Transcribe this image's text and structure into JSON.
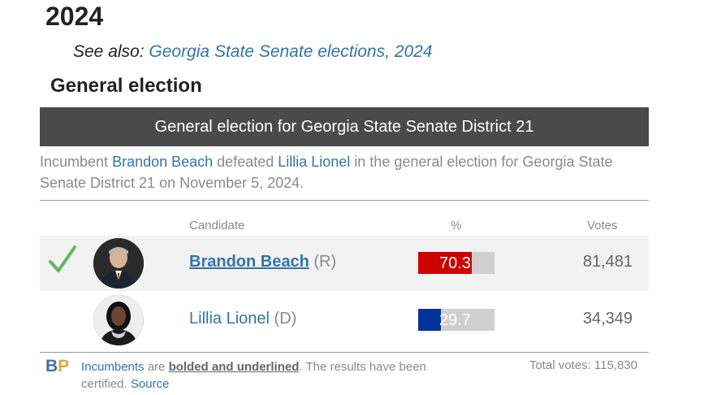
{
  "page": {
    "year_heading": "2024",
    "see_also_prefix": "See also:",
    "see_also_link": "Georgia State Senate elections, 2024",
    "section_title": "General election"
  },
  "election": {
    "header": "General election for Georgia State Senate District 21",
    "summary": {
      "part1": "Incumbent ",
      "winner_link": "Brandon Beach",
      "part2": " defeated ",
      "loser_link": "Lillia Lionel",
      "part3": " in the general election for Georgia State Senate District 21 on November 5, 2024."
    },
    "columns": {
      "candidate": "Candidate",
      "percent": "%",
      "votes": "Votes"
    },
    "candidates": [
      {
        "name": "Brandon Beach",
        "party": "(R)",
        "percent": 70.3,
        "percent_text": "70.3",
        "votes": "81,481",
        "winner": true,
        "incumbent": true,
        "bar_color": "#cc0000"
      },
      {
        "name": "Lillia Lionel",
        "party": "(D)",
        "percent": 29.7,
        "percent_text": "29.7",
        "votes": "34,349",
        "winner": false,
        "incumbent": false,
        "bar_color": "#003399"
      }
    ],
    "footnote": {
      "incumbents_link": "Incumbents",
      "text1": " are ",
      "bold_underlined": "bolded and underlined",
      "text2": ". The results have been certified. ",
      "source_link": "Source"
    },
    "total_votes": "Total votes: 115,830"
  },
  "logo": {
    "b": "B",
    "p": "P",
    "b_color": "#3e6fb3",
    "p_color": "#e8a33d"
  },
  "colors": {
    "link": "#3374aa",
    "header_bg": "#4a4a4a",
    "winner_check": "#5cb85c"
  },
  "icons": {
    "winner": "check-icon",
    "avatar": "person-photo"
  }
}
